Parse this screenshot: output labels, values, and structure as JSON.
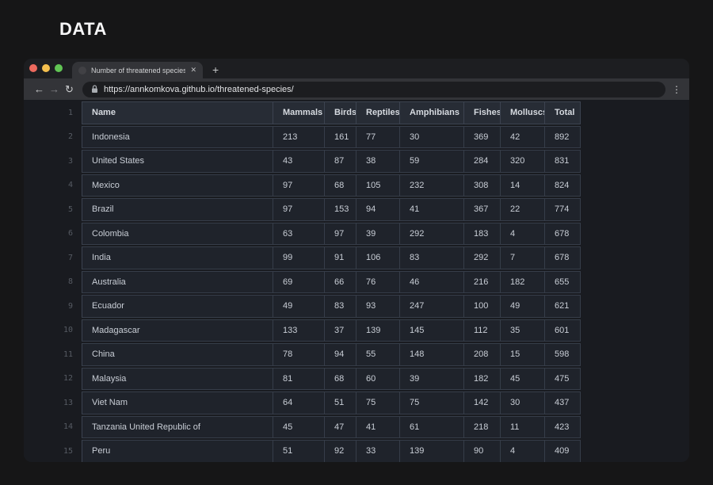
{
  "page_title": "DATA",
  "browser": {
    "tab_title": "Number of threatened species",
    "close_label": "✕",
    "new_tab_label": "+",
    "back_icon": "←",
    "forward_icon": "→",
    "reload_icon": "↻",
    "menu_icon": "⋮",
    "url": "https://annkomkova.github.io/threatened-species/"
  },
  "colors": {
    "traffic_red": "#ed6a5e",
    "traffic_yellow": "#f4bf4e",
    "traffic_green": "#61c554",
    "header_cell_bg": "#272c35",
    "data_cell_bg": "#1f232b"
  },
  "table": {
    "header_line": "1",
    "columns": [
      "Name",
      "Mammals",
      "Birds",
      "Reptiles",
      "Amphibians",
      "Fishes",
      "Molluscs",
      "Total"
    ],
    "rows": [
      {
        "line": "2",
        "name": "Indonesia",
        "values": [
          213,
          161,
          77,
          30,
          369,
          42,
          892
        ]
      },
      {
        "line": "3",
        "name": "United States",
        "values": [
          43,
          87,
          38,
          59,
          284,
          320,
          831
        ]
      },
      {
        "line": "4",
        "name": "Mexico",
        "values": [
          97,
          68,
          105,
          232,
          308,
          14,
          824
        ]
      },
      {
        "line": "5",
        "name": "Brazil",
        "values": [
          97,
          153,
          94,
          41,
          367,
          22,
          774
        ]
      },
      {
        "line": "6",
        "name": "Colombia",
        "values": [
          63,
          97,
          39,
          292,
          183,
          4,
          678
        ]
      },
      {
        "line": "7",
        "name": "India",
        "values": [
          99,
          91,
          106,
          83,
          292,
          7,
          678
        ]
      },
      {
        "line": "8",
        "name": "Australia",
        "values": [
          69,
          66,
          76,
          46,
          216,
          182,
          655
        ]
      },
      {
        "line": "9",
        "name": "Ecuador",
        "values": [
          49,
          83,
          93,
          247,
          100,
          49,
          621
        ]
      },
      {
        "line": "10",
        "name": "Madagascar",
        "values": [
          133,
          37,
          139,
          145,
          112,
          35,
          601
        ]
      },
      {
        "line": "11",
        "name": "China",
        "values": [
          78,
          94,
          55,
          148,
          208,
          15,
          598
        ]
      },
      {
        "line": "12",
        "name": "Malaysia",
        "values": [
          81,
          68,
          60,
          39,
          182,
          45,
          475
        ]
      },
      {
        "line": "13",
        "name": "Viet Nam",
        "values": [
          64,
          51,
          75,
          75,
          142,
          30,
          437
        ]
      },
      {
        "line": "14",
        "name": "Tanzania United Republic of",
        "values": [
          45,
          47,
          41,
          61,
          218,
          11,
          423
        ]
      },
      {
        "line": "15",
        "name": "Peru",
        "values": [
          51,
          92,
          33,
          139,
          90,
          4,
          409
        ]
      }
    ]
  }
}
